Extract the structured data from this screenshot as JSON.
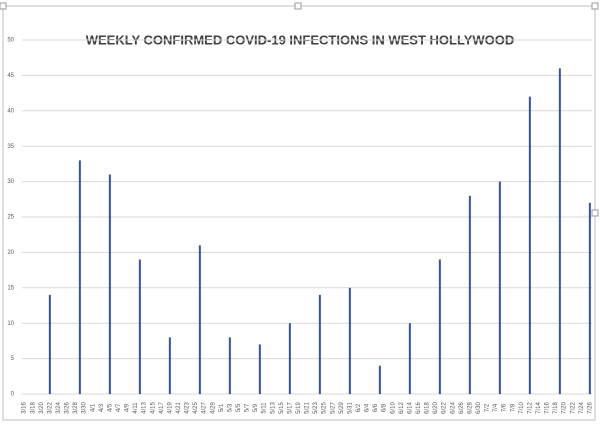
{
  "chart_data": {
    "type": "bar",
    "title": "WEEKLY CONFIRMED COVID-19 INFECTIONS IN WEST HOLLYWOOD",
    "categories": [
      "3/16",
      null,
      "3/18",
      null,
      "3/20",
      null,
      "3/22",
      null,
      "3/24",
      null,
      "3/26",
      null,
      "3/28",
      null,
      "3/30",
      null,
      "4/1",
      null,
      "4/3",
      null,
      "4/5",
      null,
      "4/7",
      null,
      "4/9",
      null,
      "4/11",
      null,
      "4/13",
      null,
      "4/15",
      null,
      "4/17",
      null,
      "4/19",
      null,
      "4/21",
      null,
      "4/23",
      null,
      "4/25",
      null,
      "4/27",
      null,
      "4/29",
      null,
      "5/1",
      null,
      "5/3",
      null,
      "5/5",
      null,
      "5/7",
      null,
      "5/9",
      null,
      "5/11",
      null,
      "5/13",
      null,
      "5/15",
      null,
      "5/17",
      null,
      "5/19",
      null,
      "5/21",
      null,
      "5/23",
      null,
      "5/25",
      null,
      "5/27",
      null,
      "5/29",
      null,
      "5/31",
      null,
      "6/2",
      null,
      "6/4",
      null,
      "6/6",
      null,
      "6/8",
      null,
      "6/10",
      null,
      "6/12",
      null,
      "6/14",
      null,
      "6/16",
      null,
      "6/18",
      null,
      "6/20",
      null,
      "6/22",
      null,
      "6/24",
      null,
      "6/26",
      null,
      "6/28",
      null,
      "6/30",
      null,
      "7/2",
      null,
      "7/4",
      null,
      "7/6",
      null,
      "7/8",
      null,
      "7/10",
      null,
      "7/12",
      null,
      "7/14",
      null,
      "7/16",
      null,
      "7/18",
      null,
      "7/20",
      null,
      "7/22",
      null,
      "7/24",
      null,
      "7/26"
    ],
    "values": [
      null,
      null,
      null,
      null,
      null,
      null,
      14,
      null,
      null,
      null,
      null,
      null,
      null,
      33,
      null,
      null,
      null,
      null,
      null,
      null,
      31,
      null,
      null,
      null,
      null,
      null,
      null,
      19,
      null,
      null,
      null,
      null,
      null,
      null,
      8,
      null,
      null,
      null,
      null,
      null,
      null,
      21,
      null,
      null,
      null,
      null,
      null,
      null,
      8,
      null,
      null,
      null,
      null,
      null,
      null,
      7,
      null,
      null,
      null,
      null,
      null,
      null,
      10,
      null,
      null,
      null,
      null,
      null,
      null,
      14,
      null,
      null,
      null,
      null,
      null,
      null,
      15,
      null,
      null,
      null,
      null,
      null,
      null,
      4,
      null,
      null,
      null,
      null,
      null,
      null,
      10,
      null,
      null,
      null,
      null,
      null,
      null,
      19,
      null,
      null,
      null,
      null,
      null,
      null,
      28,
      null,
      null,
      null,
      null,
      null,
      null,
      30,
      null,
      null,
      null,
      null,
      null,
      null,
      42,
      null,
      null,
      null,
      null,
      null,
      null,
      46,
      null,
      null,
      null,
      null,
      null,
      null,
      27
    ],
    "color": "#2f55a4",
    "ylim": [
      0,
      50
    ],
    "yticks": [
      0,
      5,
      10,
      15,
      20,
      25,
      30,
      35,
      40,
      45,
      50
    ],
    "grid": true
  }
}
